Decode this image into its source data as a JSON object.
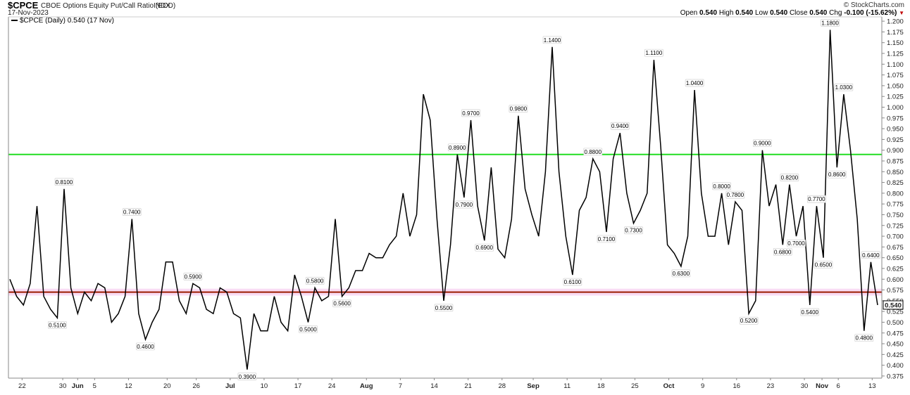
{
  "header": {
    "symbol": "$CPCE",
    "description": "CBOE Options Equity Put/Call Ratio (EOD)",
    "exchange": "INDX",
    "date": "17-Nov-2023",
    "brand": "© StockCharts.com",
    "open_label": "Open",
    "open_value": "0.540",
    "high_label": "High",
    "high_value": "0.540",
    "low_label": "Low",
    "low_value": "0.540",
    "close_label": "Close",
    "close_value": "0.540",
    "chg_label": "Chg",
    "chg_value": "-0.100 (-15.62%)",
    "chg_arrow": "▼"
  },
  "legend": {
    "text": "$CPCE (Daily) 0.540 (17 Nov)"
  },
  "chart_data": {
    "type": "line",
    "ylim": [
      0.37,
      1.21
    ],
    "y_ticks": [
      "1.200",
      "1.175",
      "1.150",
      "1.125",
      "1.100",
      "1.075",
      "1.050",
      "1.025",
      "1.000",
      "0.975",
      "0.950",
      "0.925",
      "0.900",
      "0.875",
      "0.850",
      "0.825",
      "0.800",
      "0.775",
      "0.750",
      "0.725",
      "0.700",
      "0.675",
      "0.650",
      "0.625",
      "0.600",
      "0.575",
      "0.550",
      "0.525",
      "0.500",
      "0.475",
      "0.450",
      "0.425",
      "0.400",
      "0.375"
    ],
    "x_ticks": [
      {
        "label": "22",
        "index": 1.8,
        "month": false
      },
      {
        "label": "30",
        "index": 7.8,
        "month": false
      },
      {
        "label": "Jun",
        "index": 10,
        "month": true
      },
      {
        "label": "5",
        "index": 12.5,
        "month": false
      },
      {
        "label": "12",
        "index": 17.5,
        "month": false
      },
      {
        "label": "20",
        "index": 23.2,
        "month": false
      },
      {
        "label": "26",
        "index": 27.5,
        "month": false
      },
      {
        "label": "Jul",
        "index": 32.5,
        "month": true
      },
      {
        "label": "10",
        "index": 37.5,
        "month": false
      },
      {
        "label": "17",
        "index": 42.5,
        "month": false
      },
      {
        "label": "24",
        "index": 47.5,
        "month": false
      },
      {
        "label": "Aug",
        "index": 52.6,
        "month": true
      },
      {
        "label": "7",
        "index": 57.6,
        "month": false
      },
      {
        "label": "14",
        "index": 62.6,
        "month": false
      },
      {
        "label": "21",
        "index": 67.6,
        "month": false
      },
      {
        "label": "28",
        "index": 72.6,
        "month": false
      },
      {
        "label": "Sep",
        "index": 77.2,
        "month": true
      },
      {
        "label": "11",
        "index": 82.2,
        "month": false
      },
      {
        "label": "18",
        "index": 87.2,
        "month": false
      },
      {
        "label": "25",
        "index": 92.2,
        "month": false
      },
      {
        "label": "Oct",
        "index": 97.2,
        "month": true
      },
      {
        "label": "9",
        "index": 102.2,
        "month": false
      },
      {
        "label": "16",
        "index": 107.2,
        "month": false
      },
      {
        "label": "23",
        "index": 112.2,
        "month": false
      },
      {
        "label": "30",
        "index": 117.2,
        "month": false
      },
      {
        "label": "Nov",
        "index": 119.8,
        "month": true
      },
      {
        "label": "6",
        "index": 122.2,
        "month": false
      },
      {
        "label": "13",
        "index": 127.2,
        "month": false
      }
    ],
    "series": [
      {
        "values": [
          0.6,
          0.56,
          0.54,
          0.59,
          0.77,
          0.56,
          0.53,
          0.51,
          0.81,
          0.58,
          0.52,
          0.57,
          0.55,
          0.59,
          0.58,
          0.5,
          0.52,
          0.56,
          0.74,
          0.52,
          0.46,
          0.5,
          0.53,
          0.64,
          0.64,
          0.55,
          0.52,
          0.59,
          0.58,
          0.53,
          0.52,
          0.58,
          0.57,
          0.52,
          0.51,
          0.39,
          0.52,
          0.48,
          0.48,
          0.56,
          0.5,
          0.48,
          0.61,
          0.56,
          0.5,
          0.58,
          0.55,
          0.56,
          0.74,
          0.56,
          0.58,
          0.62,
          0.62,
          0.66,
          0.65,
          0.65,
          0.68,
          0.7,
          0.8,
          0.7,
          0.75,
          1.03,
          0.97,
          0.74,
          0.55,
          0.68,
          0.89,
          0.79,
          0.97,
          0.77,
          0.69,
          0.86,
          0.67,
          0.65,
          0.74,
          0.98,
          0.81,
          0.75,
          0.7,
          0.85,
          1.14,
          0.85,
          0.7,
          0.61,
          0.76,
          0.79,
          0.88,
          0.85,
          0.71,
          0.88,
          0.94,
          0.8,
          0.73,
          0.76,
          0.8,
          1.11,
          0.91,
          0.68,
          0.66,
          0.63,
          0.7,
          1.04,
          0.8,
          0.7,
          0.7,
          0.8,
          0.68,
          0.78,
          0.76,
          0.52,
          0.55,
          0.9,
          0.77,
          0.82,
          0.68,
          0.82,
          0.7,
          0.77,
          0.54,
          0.77,
          0.65,
          1.18,
          0.86,
          1.03,
          0.9,
          0.74,
          0.48,
          0.64,
          0.54
        ]
      }
    ],
    "annotations": [
      {
        "index": 8,
        "value": 0.81,
        "text": "0.8100",
        "pos": "above"
      },
      {
        "index": 7,
        "value": 0.51,
        "text": "0.5100",
        "pos": "below"
      },
      {
        "index": 18,
        "value": 0.74,
        "text": "0.7400",
        "pos": "above"
      },
      {
        "index": 20,
        "value": 0.46,
        "text": "0.4600",
        "pos": "below"
      },
      {
        "index": 27,
        "value": 0.59,
        "text": "0.5900",
        "pos": "above"
      },
      {
        "index": 35,
        "value": 0.39,
        "text": "0.3900",
        "pos": "below"
      },
      {
        "index": 44,
        "value": 0.5,
        "text": "0.5000",
        "pos": "below"
      },
      {
        "index": 45,
        "value": 0.58,
        "text": "0.5800",
        "pos": "above"
      },
      {
        "index": 49,
        "value": 0.56,
        "text": "0.5600",
        "pos": "below"
      },
      {
        "index": 64,
        "value": 0.55,
        "text": "0.5500",
        "pos": "below"
      },
      {
        "index": 66,
        "value": 0.89,
        "text": "0.8900",
        "pos": "above"
      },
      {
        "index": 67,
        "value": 0.79,
        "text": "0.7900",
        "pos": "below"
      },
      {
        "index": 68,
        "value": 0.97,
        "text": "0.9700",
        "pos": "above"
      },
      {
        "index": 70,
        "value": 0.69,
        "text": "0.6900",
        "pos": "below"
      },
      {
        "index": 75,
        "value": 0.98,
        "text": "0.9800",
        "pos": "above"
      },
      {
        "index": 80,
        "value": 1.14,
        "text": "1.1400",
        "pos": "above"
      },
      {
        "index": 83,
        "value": 0.61,
        "text": "0.6100",
        "pos": "below"
      },
      {
        "index": 86,
        "value": 0.88,
        "text": "0.8800",
        "pos": "above"
      },
      {
        "index": 88,
        "value": 0.71,
        "text": "0.7100",
        "pos": "below"
      },
      {
        "index": 90,
        "value": 0.94,
        "text": "0.9400",
        "pos": "above"
      },
      {
        "index": 92,
        "value": 0.73,
        "text": "0.7300",
        "pos": "below"
      },
      {
        "index": 95,
        "value": 1.11,
        "text": "1.1100",
        "pos": "above"
      },
      {
        "index": 99,
        "value": 0.63,
        "text": "0.6300",
        "pos": "below"
      },
      {
        "index": 101,
        "value": 1.04,
        "text": "1.0400",
        "pos": "above"
      },
      {
        "index": 105,
        "value": 0.8,
        "text": "0.8000",
        "pos": "above"
      },
      {
        "index": 107,
        "value": 0.78,
        "text": "0.7800",
        "pos": "above"
      },
      {
        "index": 109,
        "value": 0.52,
        "text": "0.5200",
        "pos": "below"
      },
      {
        "index": 111,
        "value": 0.9,
        "text": "0.9000",
        "pos": "above"
      },
      {
        "index": 114,
        "value": 0.68,
        "text": "0.6800",
        "pos": "below"
      },
      {
        "index": 115,
        "value": 0.82,
        "text": "0.8200",
        "pos": "above"
      },
      {
        "index": 116,
        "value": 0.7,
        "text": "0.7000",
        "pos": "below"
      },
      {
        "index": 118,
        "value": 0.54,
        "text": "0.5400",
        "pos": "below"
      },
      {
        "index": 119,
        "value": 0.77,
        "text": "0.7700",
        "pos": "above"
      },
      {
        "index": 120,
        "value": 0.65,
        "text": "0.6500",
        "pos": "below"
      },
      {
        "index": 121,
        "value": 1.18,
        "text": "1.1800",
        "pos": "above"
      },
      {
        "index": 122,
        "value": 0.86,
        "text": "0.8600",
        "pos": "below"
      },
      {
        "index": 123,
        "value": 1.03,
        "text": "1.0300",
        "pos": "above"
      },
      {
        "index": 126,
        "value": 0.48,
        "text": "0.4800",
        "pos": "below"
      },
      {
        "index": 127,
        "value": 0.64,
        "text": "0.6400",
        "pos": "above"
      }
    ],
    "horizontal_lines": [
      {
        "value": 0.89,
        "color": "#22dd22"
      },
      {
        "value": 0.57,
        "color": "#9b1c00"
      }
    ],
    "pink_band": [
      0.562,
      0.578
    ],
    "last_value_label": "0.540",
    "grid": false,
    "colors": {
      "line": "#000000",
      "green": "#22dd22",
      "red": "#9b1c00",
      "band": "#f9dcf4"
    }
  }
}
